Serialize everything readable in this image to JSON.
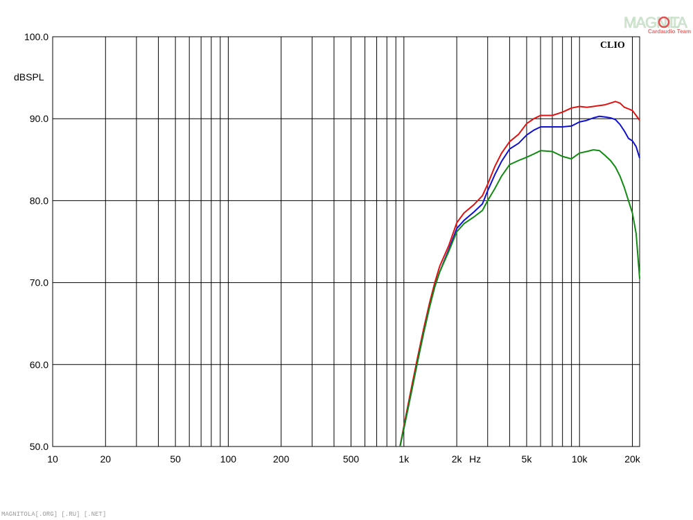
{
  "chart_data": {
    "type": "line",
    "x_scale": "log",
    "xlim": [
      10,
      22000
    ],
    "ylim": [
      50,
      100
    ],
    "ylabel": "dBSPL",
    "xunit": "Hz",
    "grid": true,
    "x_ticks": [
      {
        "value": 10,
        "label": "10"
      },
      {
        "value": 20,
        "label": "20"
      },
      {
        "value": 50,
        "label": "50"
      },
      {
        "value": 100,
        "label": "100"
      },
      {
        "value": 200,
        "label": "200"
      },
      {
        "value": 500,
        "label": "500"
      },
      {
        "value": 1000,
        "label": "1k"
      },
      {
        "value": 2000,
        "label": "2k"
      },
      {
        "value": 5000,
        "label": "5k"
      },
      {
        "value": 10000,
        "label": "10k"
      },
      {
        "value": 20000,
        "label": "20k"
      }
    ],
    "y_ticks": [
      {
        "value": 50,
        "label": "50.0"
      },
      {
        "value": 60,
        "label": "60.0"
      },
      {
        "value": 70,
        "label": "70.0"
      },
      {
        "value": 80,
        "label": "80.0"
      },
      {
        "value": 90,
        "label": "90.0"
      },
      {
        "value": 100,
        "label": "100.0"
      }
    ],
    "series": [
      {
        "color": "#e01010",
        "points": [
          [
            950,
            50
          ],
          [
            1000,
            52.5
          ],
          [
            1100,
            57
          ],
          [
            1200,
            61
          ],
          [
            1300,
            64.5
          ],
          [
            1400,
            67.5
          ],
          [
            1500,
            70
          ],
          [
            1600,
            72
          ],
          [
            1800,
            74.5
          ],
          [
            2000,
            77.3
          ],
          [
            2200,
            78.5
          ],
          [
            2500,
            79.5
          ],
          [
            2800,
            80.6
          ],
          [
            3000,
            82
          ],
          [
            3300,
            84.2
          ],
          [
            3600,
            85.8
          ],
          [
            4000,
            87.2
          ],
          [
            4500,
            88.1
          ],
          [
            5000,
            89.4
          ],
          [
            5500,
            90
          ],
          [
            6000,
            90.4
          ],
          [
            7000,
            90.4
          ],
          [
            8000,
            90.8
          ],
          [
            9000,
            91.3
          ],
          [
            10000,
            91.5
          ],
          [
            11000,
            91.4
          ],
          [
            12000,
            91.5
          ],
          [
            13000,
            91.6
          ],
          [
            14000,
            91.7
          ],
          [
            15000,
            91.9
          ],
          [
            16000,
            92.1
          ],
          [
            17000,
            91.9
          ],
          [
            18000,
            91.4
          ],
          [
            19000,
            91.2
          ],
          [
            20000,
            91
          ],
          [
            21000,
            90.4
          ],
          [
            22000,
            89.8
          ]
        ]
      },
      {
        "color": "#1010d0",
        "points": [
          [
            950,
            50
          ],
          [
            1000,
            52.2
          ],
          [
            1100,
            56.5
          ],
          [
            1200,
            60.5
          ],
          [
            1300,
            64
          ],
          [
            1400,
            67
          ],
          [
            1500,
            69.5
          ],
          [
            1600,
            71.3
          ],
          [
            1800,
            74
          ],
          [
            2000,
            76.6
          ],
          [
            2200,
            77.6
          ],
          [
            2500,
            78.6
          ],
          [
            2800,
            79.6
          ],
          [
            3000,
            81.2
          ],
          [
            3300,
            83.2
          ],
          [
            3600,
            84.8
          ],
          [
            4000,
            86.3
          ],
          [
            4500,
            87
          ],
          [
            5000,
            88
          ],
          [
            5500,
            88.6
          ],
          [
            6000,
            89
          ],
          [
            7000,
            89
          ],
          [
            8000,
            89
          ],
          [
            9000,
            89.1
          ],
          [
            10000,
            89.6
          ],
          [
            11000,
            89.8
          ],
          [
            12000,
            90.1
          ],
          [
            13000,
            90.3
          ],
          [
            14000,
            90.2
          ],
          [
            15000,
            90.1
          ],
          [
            16000,
            89.9
          ],
          [
            17000,
            89.3
          ],
          [
            18000,
            88.5
          ],
          [
            19000,
            87.6
          ],
          [
            20000,
            87.3
          ],
          [
            21000,
            86.6
          ],
          [
            22000,
            85.2
          ]
        ]
      },
      {
        "color": "#108a10",
        "points": [
          [
            950,
            50
          ],
          [
            1000,
            52.2
          ],
          [
            1100,
            56.5
          ],
          [
            1200,
            60.5
          ],
          [
            1300,
            64
          ],
          [
            1400,
            67
          ],
          [
            1500,
            69.5
          ],
          [
            1600,
            71.3
          ],
          [
            1800,
            73.8
          ],
          [
            2000,
            76.2
          ],
          [
            2200,
            77.2
          ],
          [
            2500,
            78
          ],
          [
            2800,
            78.8
          ],
          [
            3000,
            80
          ],
          [
            3300,
            81.5
          ],
          [
            3600,
            83
          ],
          [
            4000,
            84.4
          ],
          [
            4500,
            84.9
          ],
          [
            5000,
            85.3
          ],
          [
            5500,
            85.7
          ],
          [
            6000,
            86.1
          ],
          [
            7000,
            86
          ],
          [
            8000,
            85.4
          ],
          [
            9000,
            85.1
          ],
          [
            10000,
            85.8
          ],
          [
            11000,
            86
          ],
          [
            12000,
            86.2
          ],
          [
            13000,
            86.1
          ],
          [
            14000,
            85.5
          ],
          [
            15000,
            84.9
          ],
          [
            16000,
            84.1
          ],
          [
            17000,
            83
          ],
          [
            18000,
            81.6
          ],
          [
            19000,
            80
          ],
          [
            20000,
            78.5
          ],
          [
            21000,
            76
          ],
          [
            22000,
            70.5
          ]
        ]
      }
    ]
  },
  "watermark": {
    "brand_left": "MAGNIT",
    "brand_right": "LA",
    "subtitle": "Cardaudio Team"
  },
  "badge": "CLIO",
  "footer": "MAGNITOLA[.ORG] [.RU] [.NET]"
}
